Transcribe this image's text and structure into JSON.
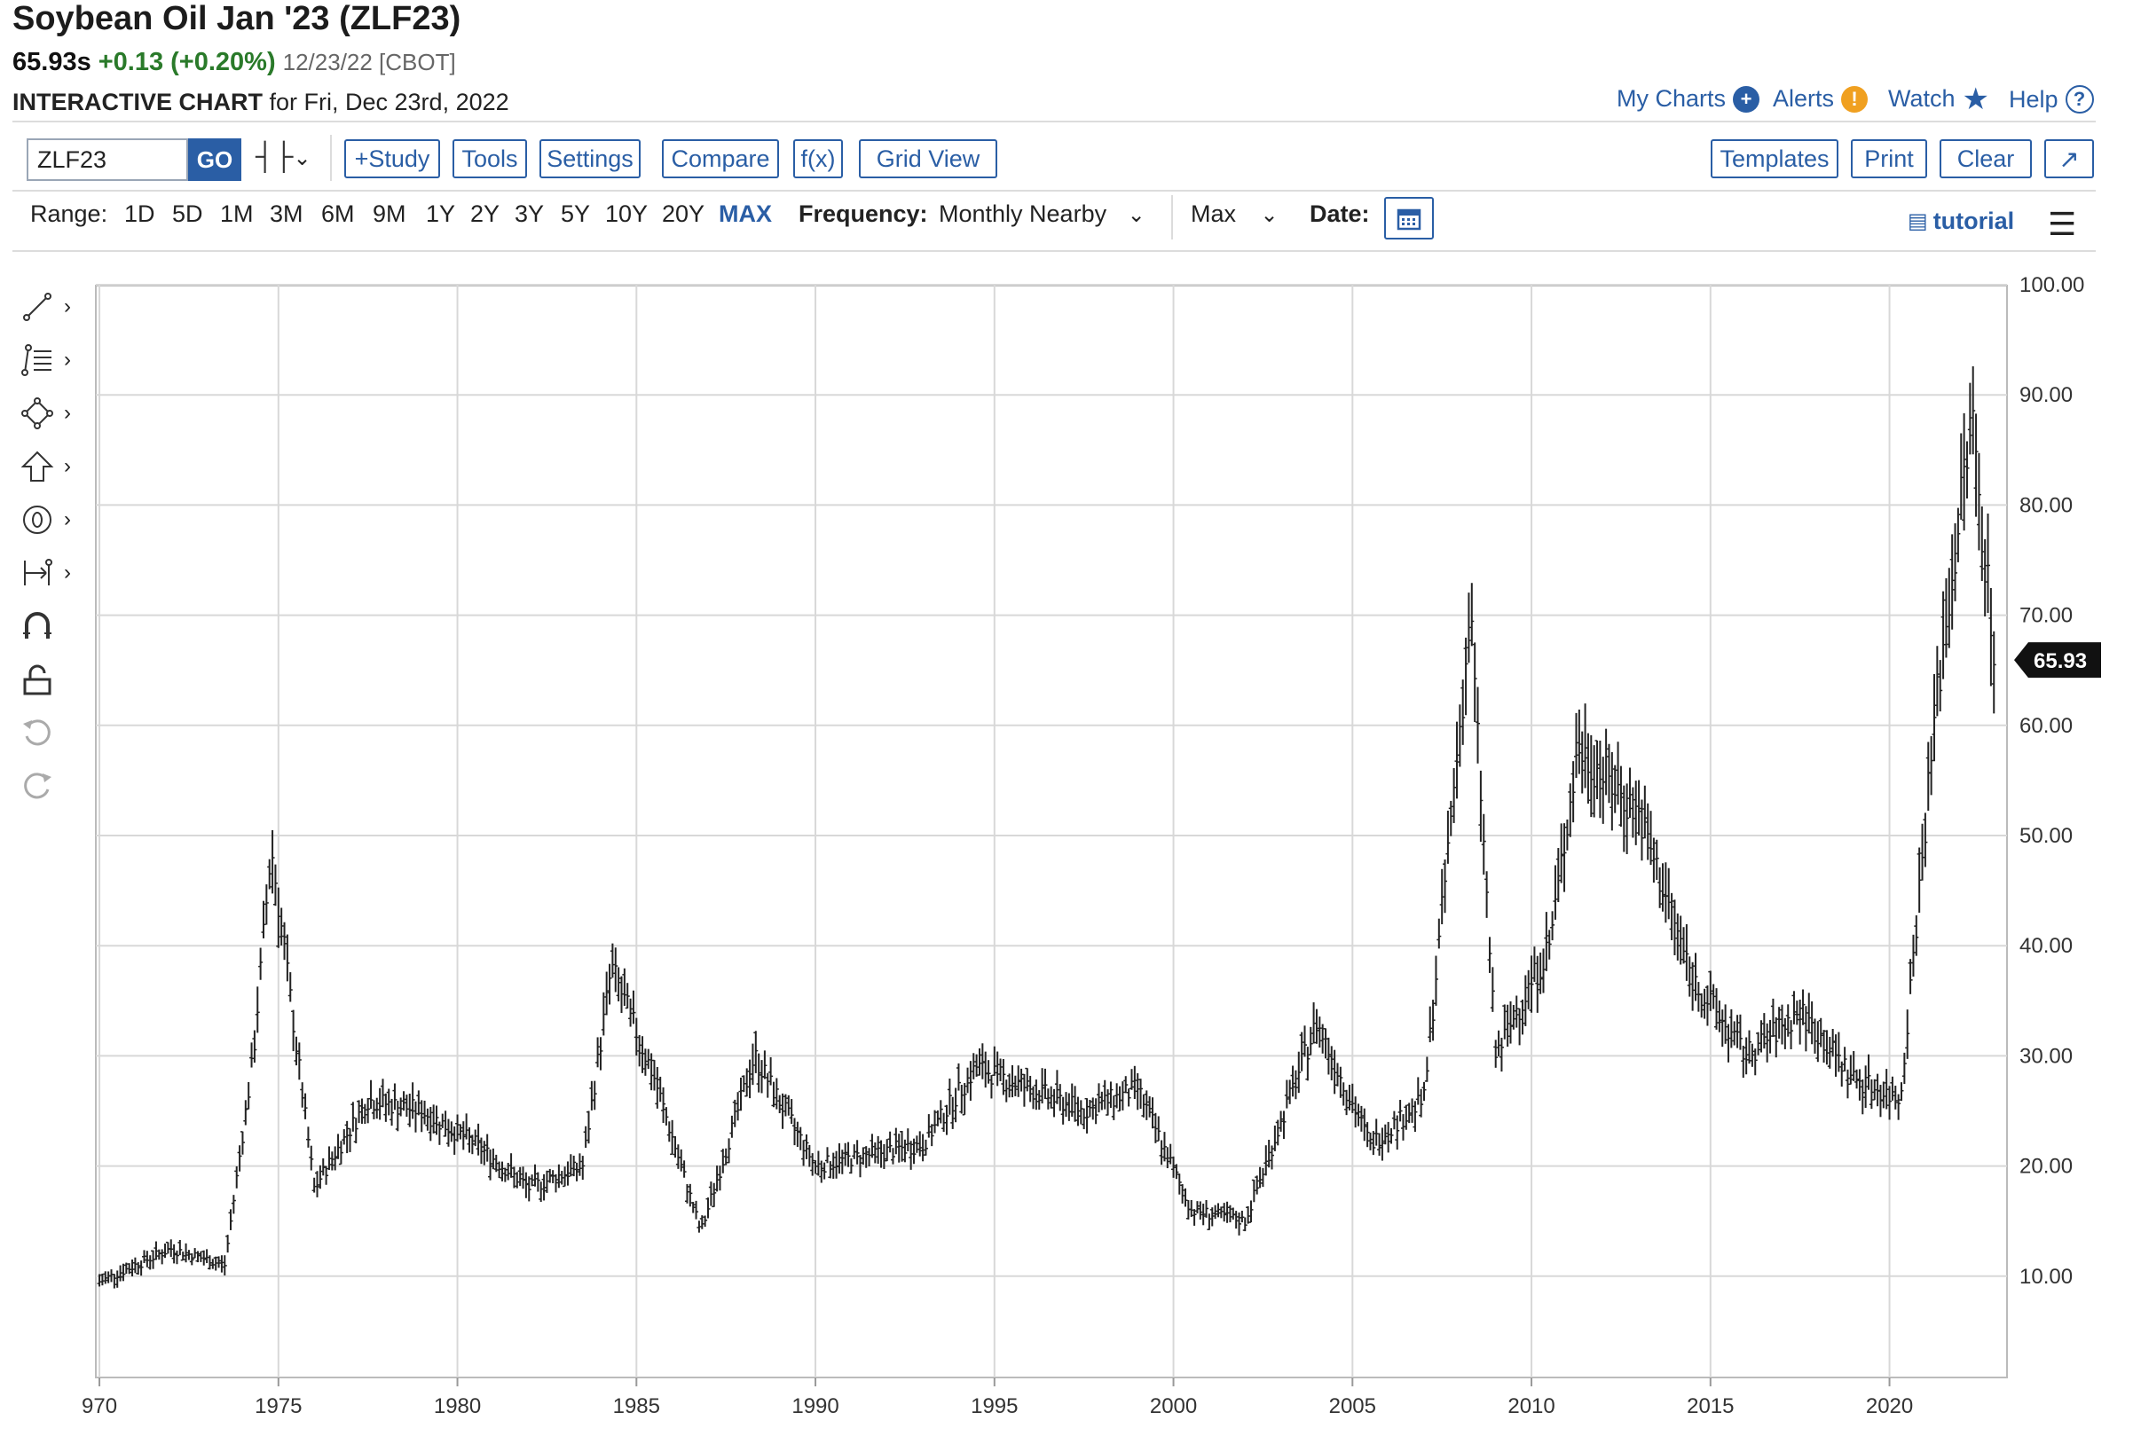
{
  "header": {
    "title": "Soybean Oil Jan '23 (ZLF23)",
    "price": "65.93s",
    "change": "+0.13 (+0.20%)",
    "quote_date": "12/23/22 [CBOT]",
    "chart_label": "INTERACTIVE CHART",
    "chart_for": "for Fri, Dec 23rd, 2022"
  },
  "top_links": {
    "my_charts": "My Charts",
    "alerts": "Alerts",
    "watch": "Watch",
    "help": "Help"
  },
  "toolbar": {
    "symbol_value": "ZLF23",
    "go_label": "GO",
    "study_label": "+Study",
    "tools_label": "Tools",
    "settings_label": "Settings",
    "compare_label": "Compare",
    "fx_label": "f(x)",
    "grid_view_label": "Grid View",
    "templates_label": "Templates",
    "print_label": "Print",
    "clear_label": "Clear"
  },
  "range_bar": {
    "range_label": "Range:",
    "ranges": [
      "1D",
      "5D",
      "1M",
      "3M",
      "6M",
      "9M",
      "1Y",
      "2Y",
      "3Y",
      "5Y",
      "10Y",
      "20Y",
      "MAX"
    ],
    "active_range": "MAX",
    "frequency_label": "Frequency:",
    "frequency_value": "Monthly Nearby",
    "max_value": "Max",
    "date_label": "Date:",
    "tutorial_label": "tutorial"
  },
  "side_tools": [
    "line-tool",
    "fib-tool",
    "shape-tool",
    "arrow-tool",
    "text-tool",
    "measure-tool",
    "magnet-tool",
    "lock-tool",
    "undo-tool",
    "redo-tool"
  ],
  "colors": {
    "accent": "#2a5ea5",
    "positive": "#2a7a2a",
    "alert": "#f0a020",
    "grid": "#d8d8d8",
    "bars": "#222222"
  },
  "chart_data": {
    "type": "ohlc",
    "x": [
      1970,
      1972,
      1973.5,
      1974.3,
      1974.8,
      1976,
      1977.5,
      1979,
      1980.5,
      1982,
      1983.5,
      1984.3,
      1985.5,
      1986.8,
      1988.3,
      1990,
      1991.5,
      1993,
      1994.5,
      1996,
      1997.5,
      1999,
      2000.5,
      2002,
      2004,
      2005.5,
      2007,
      2008.3,
      2009,
      2010.5,
      2011.3,
      2013,
      2014.5,
      2016,
      2017.5,
      2019,
      2020.3,
      2021.3,
      2022.3,
      2022.95
    ],
    "y": [
      9.5,
      12.5,
      11,
      30,
      49,
      18,
      26,
      25,
      22,
      18,
      20,
      38,
      28,
      14,
      30,
      20,
      21,
      22,
      29,
      27,
      25,
      27,
      16,
      15,
      33,
      22,
      26,
      70,
      30,
      40,
      58,
      52,
      37,
      30,
      34,
      28,
      26,
      62,
      88,
      65.93
    ],
    "last_price_label": "65.93",
    "x_ticks": [
      "970",
      "1975",
      "1980",
      "1985",
      "1990",
      "1995",
      "2000",
      "2005",
      "2010",
      "2015",
      "2020"
    ],
    "y_ticks": [
      "10.00",
      "20.00",
      "30.00",
      "40.00",
      "50.00",
      "60.00",
      "70.00",
      "80.00",
      "90.00",
      "100.00"
    ],
    "x_range": [
      1969.8,
      2023.3
    ],
    "y_range": [
      0,
      100
    ],
    "grid": true
  }
}
